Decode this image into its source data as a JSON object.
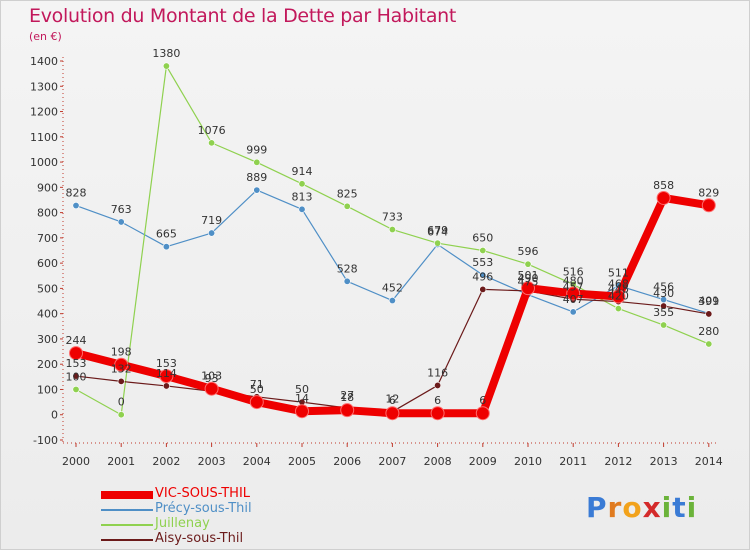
{
  "title": "Evolution du Montant de la Dette par Habitant",
  "subtitle": "(en €)",
  "logo": {
    "text": "Proxiti"
  },
  "chart_data": {
    "type": "line",
    "title": "Evolution du Montant de la Dette par Habitant",
    "ylabel": "(en €)",
    "ylim": [
      -100,
      1400
    ],
    "yticks": [
      -100,
      0,
      100,
      200,
      300,
      400,
      500,
      600,
      700,
      800,
      900,
      1000,
      1100,
      1200,
      1300,
      1400
    ],
    "x": [
      "2000",
      "2001",
      "2002",
      "2003",
      "2004",
      "2005",
      "2006",
      "2007",
      "2008",
      "2009",
      "2010",
      "2011",
      "2012",
      "2013",
      "2014"
    ],
    "grid": false,
    "legend_position": "bottom-left",
    "series": [
      {
        "name": "VIC-SOUS-THIL",
        "color": "#ee0000",
        "values": [
          244,
          198,
          153,
          103,
          50,
          14,
          18,
          6,
          6,
          6,
          501,
          480,
          468,
          858,
          829
        ]
      },
      {
        "name": "Précy-sous-Thil",
        "color": "#4f8fc6",
        "values": [
          828,
          763,
          665,
          719,
          889,
          813,
          528,
          452,
          674,
          553,
          475,
          407,
          511,
          456,
          401
        ]
      },
      {
        "name": "Juillenay",
        "color": "#8fd14f",
        "values": [
          100,
          0,
          1380,
          1076,
          999,
          914,
          825,
          733,
          679,
          650,
          596,
          516,
          420,
          355,
          280
        ]
      },
      {
        "name": "Aisy-sous-Thil",
        "color": "#6b1a1a",
        "values": [
          153,
          132,
          114,
          93,
          71,
          50,
          27,
          12,
          116,
          496,
          490,
          457,
          448,
          430,
          399
        ]
      }
    ]
  }
}
